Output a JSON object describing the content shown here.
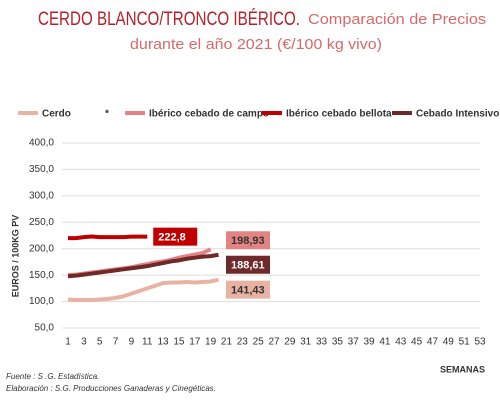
{
  "chart_data": {
    "type": "line",
    "title": "CERDO BLANCO/TRONCO IBÉRICO.",
    "subtitle": [
      "Comparación de Precios",
      "durante el año 2021 (€/100 kg vivo)"
    ],
    "legend_mark": "*",
    "y_label": "EUROS / 100KG PV",
    "x_label": "SEMANAS",
    "notes": [
      "Fuente : S .G. Estadística.",
      "Elaboración : S.G. Producciones Ganaderas y Cinegéticas."
    ],
    "x": [
      1,
      2,
      3,
      4,
      5,
      6,
      7,
      8,
      9,
      10,
      11,
      12,
      13,
      14,
      15,
      16,
      17,
      18,
      19,
      20
    ],
    "xlim": [
      1,
      53
    ],
    "xticks": [
      1,
      3,
      5,
      7,
      9,
      11,
      13,
      15,
      17,
      19,
      21,
      23,
      25,
      27,
      29,
      31,
      33,
      35,
      37,
      39,
      41,
      43,
      45,
      47,
      49,
      51,
      53
    ],
    "ylim": [
      50,
      400
    ],
    "yticks": [
      {
        "value": 50,
        "label": "50,0"
      },
      {
        "value": 100,
        "label": "100,0"
      },
      {
        "value": 150,
        "label": "150,0"
      },
      {
        "value": 200,
        "label": "200,0"
      },
      {
        "value": 250,
        "label": "250,0"
      },
      {
        "value": 300,
        "label": "300,0"
      },
      {
        "value": 350,
        "label": "350,0"
      },
      {
        "value": 400,
        "label": "400,0"
      }
    ],
    "grid": true,
    "series": [
      {
        "name": "Cerdo",
        "color": "#e9b3a3",
        "values": [
          104,
          103,
          103,
          103,
          104,
          105,
          107,
          110,
          115,
          120,
          125,
          130,
          135,
          136,
          136,
          137,
          136,
          137,
          138,
          141.43
        ],
        "value_labels": [
          null,
          null,
          null,
          null,
          null,
          null,
          null,
          null,
          null,
          null,
          null,
          null,
          null,
          null,
          null,
          null,
          null,
          null,
          null,
          "141,43"
        ]
      },
      {
        "name": "Ibérico cebado de campo",
        "color": "#e48383",
        "values": [
          150,
          151,
          153,
          155,
          157,
          159,
          161,
          163,
          165,
          168,
          171,
          174,
          176,
          179,
          183,
          186,
          189,
          192,
          198.93,
          null
        ],
        "value_labels": [
          null,
          null,
          null,
          null,
          null,
          null,
          null,
          null,
          null,
          null,
          null,
          null,
          null,
          null,
          null,
          null,
          null,
          null,
          "198,93",
          null
        ]
      },
      {
        "name": "Ibérico cebado bellota",
        "color": "#c00000",
        "values": [
          220,
          220,
          222,
          223,
          222,
          222,
          222,
          222,
          222.8,
          222.8,
          222.8,
          null,
          null,
          null,
          null,
          null,
          null,
          null,
          null,
          null
        ],
        "value_labels": [
          null,
          null,
          null,
          null,
          null,
          null,
          null,
          null,
          null,
          null,
          "222,8",
          null,
          null,
          null,
          null,
          null,
          null,
          null,
          null,
          null
        ]
      },
      {
        "name": "Cebado Intensivo",
        "color": "#6e2a2a",
        "values": [
          148,
          149,
          151,
          153,
          155,
          157,
          159,
          161,
          163,
          165,
          167,
          170,
          173,
          176,
          178,
          181,
          183,
          185,
          186,
          188.61
        ],
        "value_labels": [
          null,
          null,
          null,
          null,
          null,
          null,
          null,
          null,
          null,
          null,
          null,
          null,
          null,
          null,
          null,
          null,
          null,
          null,
          null,
          "188,61"
        ]
      }
    ]
  }
}
